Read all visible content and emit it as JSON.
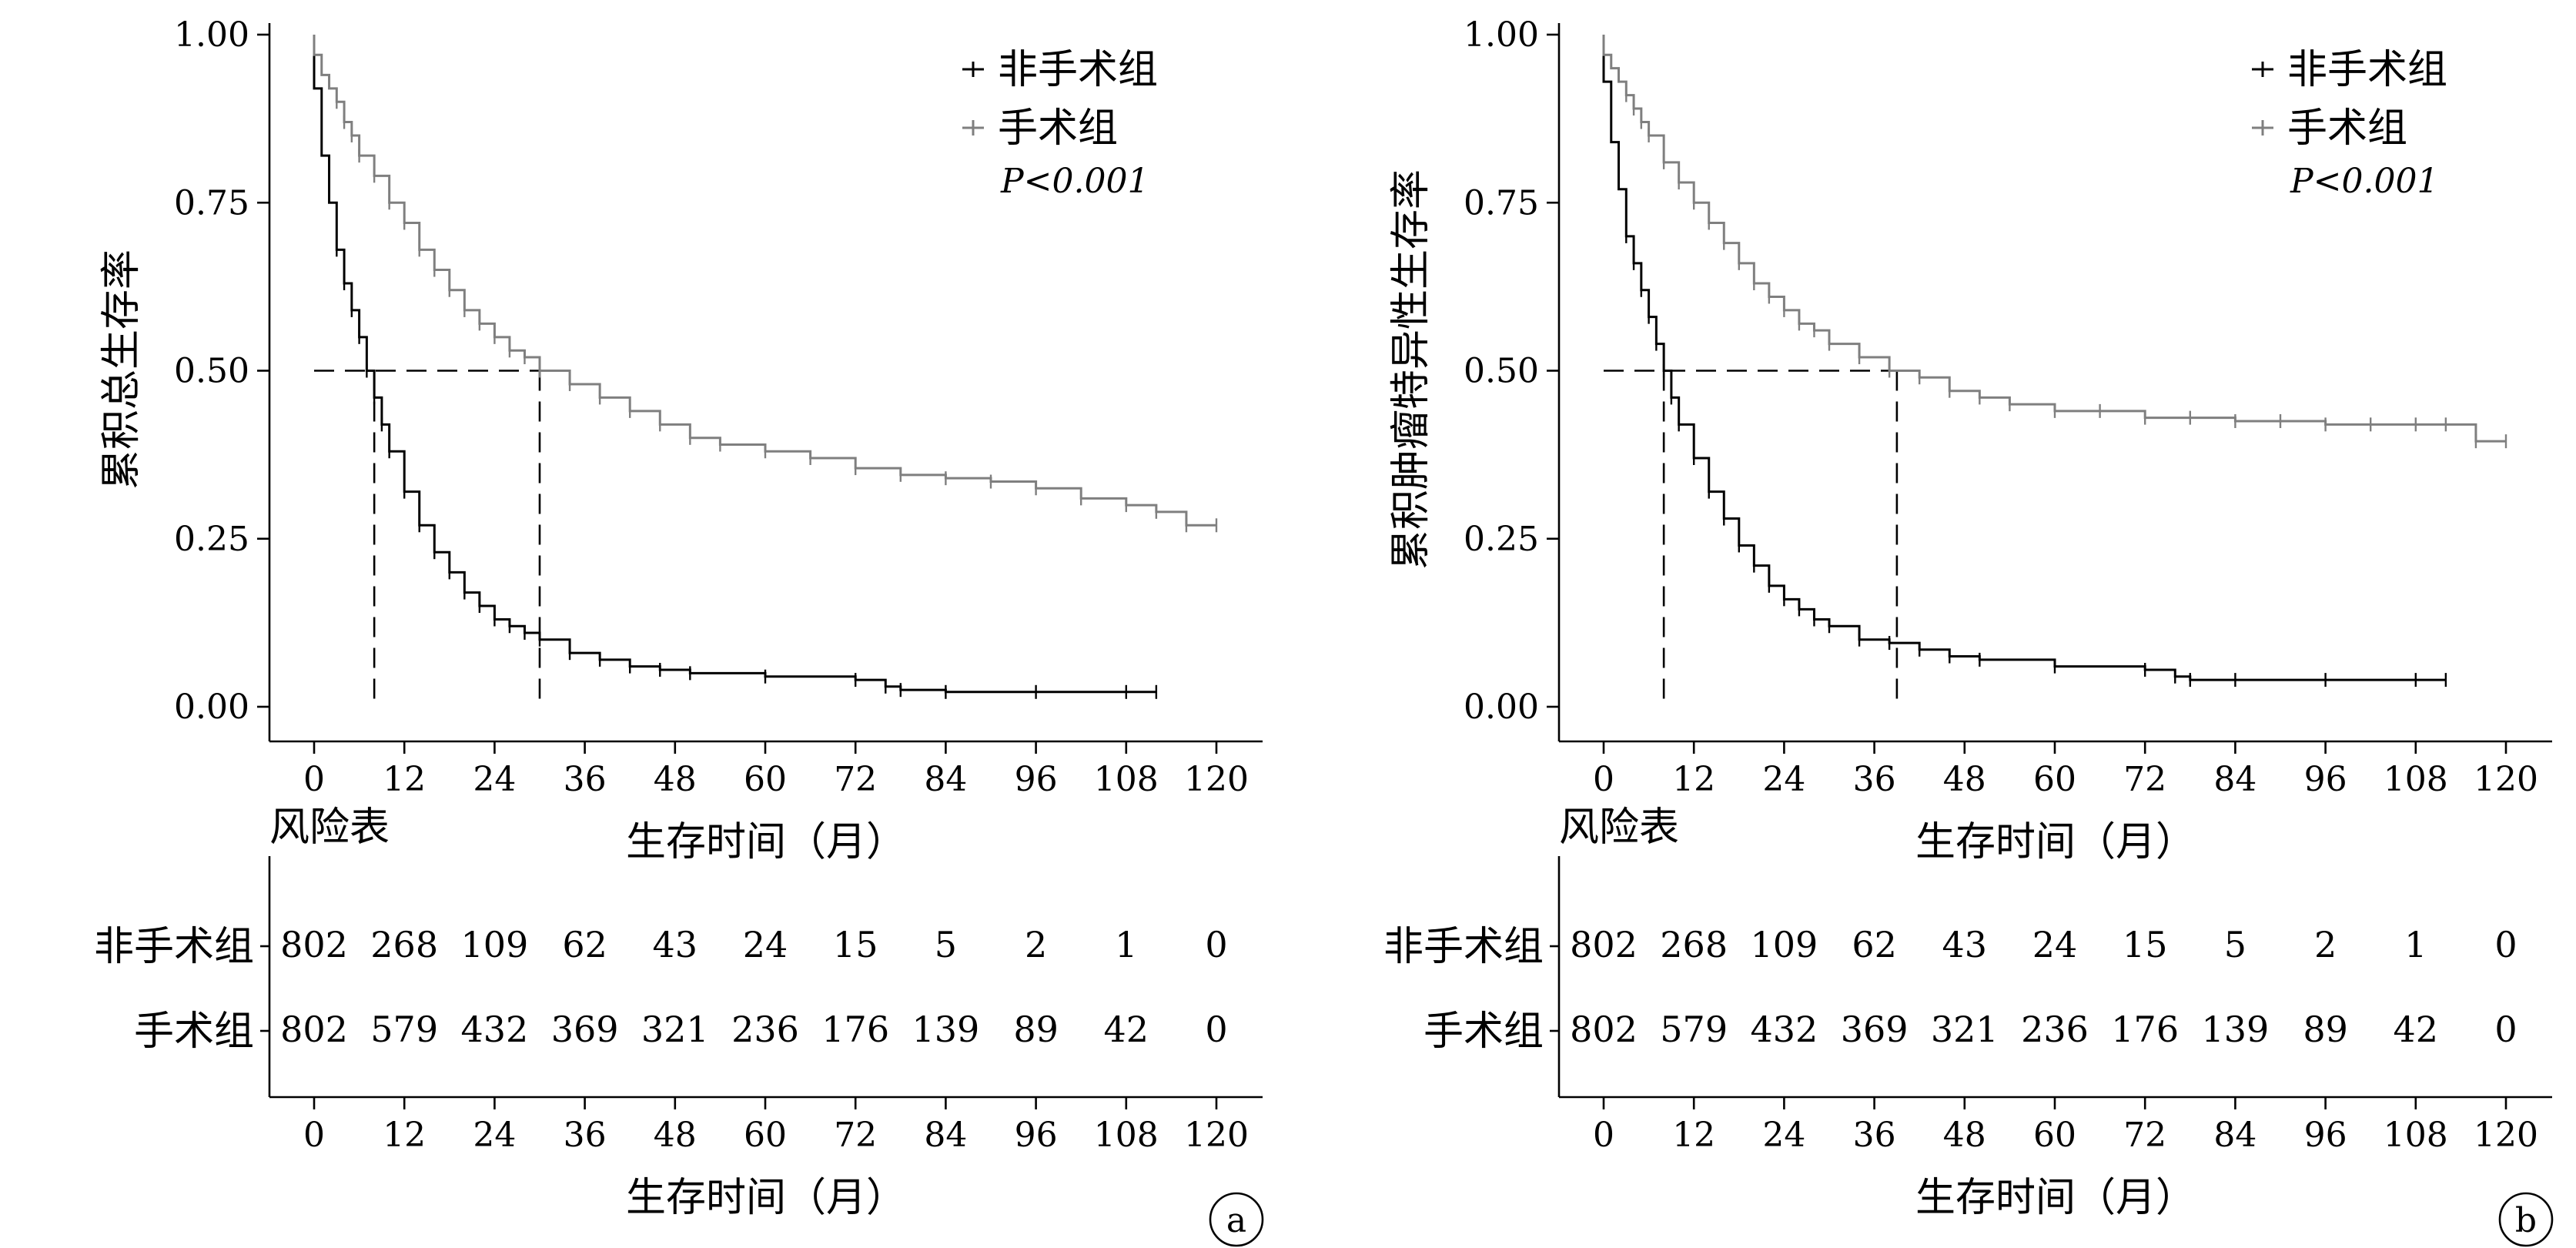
{
  "chart_data": [
    {
      "type": "line",
      "subtype": "kaplan-meier",
      "panel_label": "a",
      "ylabel": "累积总生存率",
      "xlabel": "生存时间（月）",
      "xlim": [
        0,
        120
      ],
      "ylim": [
        0,
        1
      ],
      "x_ticks": [
        "0",
        "12",
        "24",
        "36",
        "48",
        "60",
        "72",
        "84",
        "96",
        "108",
        "120"
      ],
      "y_ticks": [
        "0.00",
        "0.25",
        "0.50",
        "0.75",
        "1.00"
      ],
      "legend": {
        "placement": "top-right",
        "entries": [
          "非手术组",
          "手术组"
        ],
        "p_value": "P<0.001"
      },
      "median_survival": {
        "非手术组": 8,
        "手术组": 30
      },
      "series": [
        {
          "name": "非手术组",
          "color": "#000000",
          "x": [
            0,
            1,
            2,
            3,
            4,
            5,
            6,
            7,
            8,
            9,
            10,
            12,
            14,
            16,
            18,
            20,
            22,
            24,
            26,
            28,
            30,
            34,
            38,
            42,
            46,
            50,
            60,
            72,
            76,
            78,
            84,
            96,
            108,
            112
          ],
          "y": [
            0.92,
            0.82,
            0.75,
            0.68,
            0.63,
            0.59,
            0.55,
            0.5,
            0.46,
            0.42,
            0.38,
            0.32,
            0.27,
            0.23,
            0.2,
            0.17,
            0.15,
            0.13,
            0.12,
            0.11,
            0.1,
            0.08,
            0.07,
            0.06,
            0.055,
            0.05,
            0.045,
            0.04,
            0.03,
            0.025,
            0.022,
            0.022,
            0.022,
            0.022
          ]
        },
        {
          "name": "手术组",
          "color": "#7f7f7f",
          "x": [
            0,
            1,
            2,
            3,
            4,
            5,
            6,
            8,
            10,
            12,
            14,
            16,
            18,
            20,
            22,
            24,
            26,
            28,
            30,
            34,
            38,
            42,
            46,
            50,
            54,
            60,
            66,
            72,
            78,
            84,
            90,
            96,
            102,
            108,
            112,
            116,
            120
          ],
          "y": [
            0.97,
            0.94,
            0.92,
            0.9,
            0.87,
            0.85,
            0.82,
            0.79,
            0.75,
            0.72,
            0.68,
            0.65,
            0.62,
            0.59,
            0.57,
            0.55,
            0.53,
            0.52,
            0.5,
            0.48,
            0.46,
            0.44,
            0.42,
            0.4,
            0.39,
            0.38,
            0.37,
            0.355,
            0.345,
            0.34,
            0.335,
            0.325,
            0.31,
            0.3,
            0.29,
            0.27,
            0.27
          ]
        }
      ],
      "risk_table": {
        "title": "风险表",
        "xlabel": "生存时间（月）",
        "time_ticks": [
          "0",
          "12",
          "24",
          "36",
          "48",
          "60",
          "72",
          "84",
          "96",
          "108",
          "120"
        ],
        "rows": [
          {
            "group": "非手术组",
            "counts": [
              "802",
              "268",
              "109",
              "62",
              "43",
              "24",
              "15",
              "5",
              "2",
              "1",
              "0"
            ]
          },
          {
            "group": "手术组",
            "counts": [
              "802",
              "579",
              "432",
              "369",
              "321",
              "236",
              "176",
              "139",
              "89",
              "42",
              "0"
            ]
          }
        ]
      }
    },
    {
      "type": "line",
      "subtype": "kaplan-meier",
      "panel_label": "b",
      "ylabel": "累积肿瘤特异性生存率",
      "xlabel": "生存时间（月）",
      "xlim": [
        0,
        120
      ],
      "ylim": [
        0,
        1
      ],
      "x_ticks": [
        "0",
        "12",
        "24",
        "36",
        "48",
        "60",
        "72",
        "84",
        "96",
        "108",
        "120"
      ],
      "y_ticks": [
        "0.00",
        "0.25",
        "0.50",
        "0.75",
        "1.00"
      ],
      "legend": {
        "placement": "top-right",
        "entries": [
          "非手术组",
          "手术组"
        ],
        "p_value": "P<0.001"
      },
      "median_survival": {
        "非手术组": 8,
        "手术组": 39
      },
      "series": [
        {
          "name": "非手术组",
          "color": "#000000",
          "x": [
            0,
            1,
            2,
            3,
            4,
            5,
            6,
            7,
            8,
            9,
            10,
            12,
            14,
            16,
            18,
            20,
            22,
            24,
            26,
            28,
            30,
            34,
            38,
            42,
            46,
            50,
            60,
            72,
            76,
            78,
            84,
            96,
            108,
            112
          ],
          "y": [
            0.93,
            0.84,
            0.77,
            0.7,
            0.66,
            0.62,
            0.58,
            0.54,
            0.5,
            0.46,
            0.42,
            0.37,
            0.32,
            0.28,
            0.24,
            0.21,
            0.18,
            0.16,
            0.145,
            0.13,
            0.12,
            0.1,
            0.095,
            0.085,
            0.075,
            0.07,
            0.06,
            0.055,
            0.045,
            0.04,
            0.04,
            0.04,
            0.04,
            0.04
          ]
        },
        {
          "name": "手术组",
          "color": "#7f7f7f",
          "x": [
            0,
            1,
            2,
            3,
            4,
            5,
            6,
            8,
            10,
            12,
            14,
            16,
            18,
            20,
            22,
            24,
            26,
            28,
            30,
            34,
            38,
            42,
            46,
            50,
            54,
            60,
            66,
            72,
            78,
            84,
            90,
            96,
            102,
            108,
            112,
            116,
            120
          ],
          "y": [
            0.97,
            0.95,
            0.93,
            0.91,
            0.89,
            0.87,
            0.85,
            0.81,
            0.78,
            0.75,
            0.72,
            0.69,
            0.66,
            0.63,
            0.61,
            0.59,
            0.57,
            0.56,
            0.54,
            0.52,
            0.5,
            0.49,
            0.47,
            0.46,
            0.45,
            0.44,
            0.44,
            0.43,
            0.43,
            0.425,
            0.425,
            0.42,
            0.42,
            0.42,
            0.42,
            0.395,
            0.395
          ]
        }
      ],
      "risk_table": {
        "title": "风险表",
        "xlabel": "生存时间（月）",
        "time_ticks": [
          "0",
          "12",
          "24",
          "36",
          "48",
          "60",
          "72",
          "84",
          "96",
          "108",
          "120"
        ],
        "rows": [
          {
            "group": "非手术组",
            "counts": [
              "802",
              "268",
              "109",
              "62",
              "43",
              "24",
              "15",
              "5",
              "2",
              "1",
              "0"
            ]
          },
          {
            "group": "手术组",
            "counts": [
              "802",
              "579",
              "432",
              "369",
              "321",
              "236",
              "176",
              "139",
              "89",
              "42",
              "0"
            ]
          }
        ]
      }
    }
  ]
}
